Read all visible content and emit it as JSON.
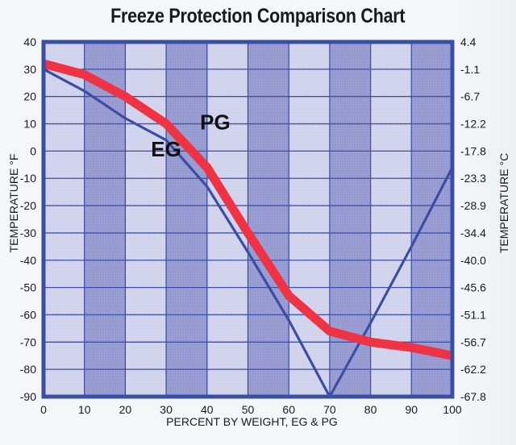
{
  "chart_data": {
    "type": "line",
    "title": "Freeze Protection Comparison Chart",
    "xlabel": "PERCENT BY WEIGHT, EG & PG",
    "ylabel": "TEMPERATURE °F",
    "ylabel_right": "TEMPERATURE °C",
    "x": [
      0,
      10,
      20,
      30,
      40,
      50,
      60,
      70,
      80,
      90,
      100
    ],
    "xlim": [
      0,
      100
    ],
    "ylim": [
      -90,
      40
    ],
    "x_ticks": [
      "0",
      "10",
      "20",
      "30",
      "40",
      "50",
      "60",
      "70",
      "80",
      "90",
      "100"
    ],
    "y_ticks": [
      "40",
      "30",
      "20",
      "10",
      "0",
      "-10",
      "-20",
      "-30",
      "-40",
      "-50",
      "-60",
      "-70",
      "-80",
      "-90"
    ],
    "y_ticks_right": [
      "4.4",
      "-1.1",
      "-6.7",
      "-12.2",
      "-17.8",
      "-23.3",
      "-28.9",
      "-34.4",
      "-40.0",
      "-45.6",
      "-51.1",
      "-56.7",
      "-62.2",
      "-67.8"
    ],
    "grid": true,
    "series": [
      {
        "name": "EG",
        "color": "#3a4ea6",
        "values": [
          30,
          22,
          12,
          4,
          -13,
          -37,
          -62,
          -90,
          -63,
          -35,
          -6
        ],
        "label_at": [
          30,
          -2
        ]
      },
      {
        "name": "PG",
        "color": "#ee3344",
        "values": [
          32,
          28,
          20,
          10,
          -6,
          -30,
          -53,
          -66,
          -70,
          -72,
          -75
        ],
        "label_at": [
          42,
          8
        ]
      }
    ],
    "legend": "inline-labels"
  },
  "colors": {
    "frame": "#3a4ea6",
    "band_dark": "#8f92cc",
    "band_light": "#d9daf0",
    "grid": "#3a4ea6"
  }
}
